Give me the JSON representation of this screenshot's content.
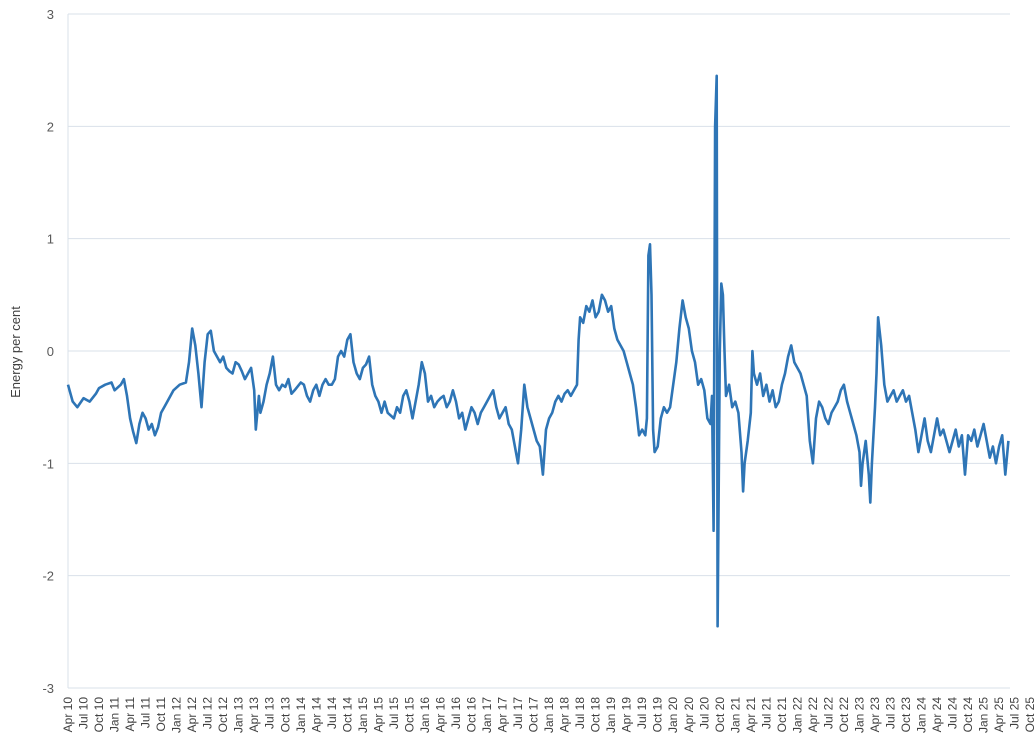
{
  "chart_data": {
    "type": "line",
    "title": "",
    "xlabel": "",
    "ylabel": "Energy per cent",
    "ylim": [
      -3,
      3
    ],
    "yticks": [
      3,
      2,
      1,
      0,
      -1,
      -2,
      -3
    ],
    "grid": true,
    "legend": "none",
    "line_color": "#2e75b6",
    "x": [
      "Apr 10",
      "Jul 10",
      "Oct 10",
      "Jan 11",
      "Apr 11",
      "Jul 11",
      "Oct 11",
      "Jan 12",
      "Apr 12",
      "Jul 12",
      "Oct 12",
      "Jan 13",
      "Apr 13",
      "Jul 13",
      "Oct 13",
      "Jan 14",
      "Apr 14",
      "Jul 14",
      "Oct 14",
      "Jan 15",
      "Apr 15",
      "Jul 15",
      "Oct 15",
      "Jan 16",
      "Apr 16",
      "Jul 16",
      "Oct 16",
      "Jan 17",
      "Apr 17",
      "Jul 17",
      "Oct 17",
      "Jan 18",
      "Apr 18",
      "Jul 18",
      "Oct 18",
      "Jan 19",
      "Apr 19",
      "Jul 19",
      "Oct 19",
      "Jan 20",
      "Apr 20",
      "Jul 20",
      "Oct 20",
      "Jan 21",
      "Apr 21",
      "Jul 21",
      "Oct 21",
      "Jan 22",
      "Apr 22",
      "Jul 22",
      "Oct 22",
      "Jan 23",
      "Apr 23",
      "Jul 23",
      "Oct 23",
      "Jan 24",
      "Apr 24",
      "Jul 24",
      "Oct 24",
      "Jan 25",
      "Apr 25",
      "Jul 25",
      "Oct 25"
    ],
    "series": [
      {
        "values": [
          [
            0,
            -0.3
          ],
          [
            0.15,
            -0.45
          ],
          [
            0.3,
            -0.5
          ],
          [
            0.5,
            -0.42
          ],
          [
            0.7,
            -0.45
          ],
          [
            0.9,
            -0.38
          ],
          [
            1.0,
            -0.33
          ],
          [
            1.2,
            -0.3
          ],
          [
            1.4,
            -0.28
          ],
          [
            1.5,
            -0.35
          ],
          [
            1.7,
            -0.3
          ],
          [
            1.8,
            -0.25
          ],
          [
            1.9,
            -0.4
          ],
          [
            2.0,
            -0.6
          ],
          [
            2.1,
            -0.72
          ],
          [
            2.2,
            -0.82
          ],
          [
            2.3,
            -0.65
          ],
          [
            2.4,
            -0.55
          ],
          [
            2.5,
            -0.6
          ],
          [
            2.6,
            -0.7
          ],
          [
            2.7,
            -0.65
          ],
          [
            2.8,
            -0.75
          ],
          [
            2.9,
            -0.68
          ],
          [
            3.0,
            -0.55
          ],
          [
            3.1,
            -0.5
          ],
          [
            3.2,
            -0.45
          ],
          [
            3.4,
            -0.35
          ],
          [
            3.6,
            -0.3
          ],
          [
            3.8,
            -0.28
          ],
          [
            3.9,
            -0.1
          ],
          [
            4.0,
            0.2
          ],
          [
            4.1,
            0.05
          ],
          [
            4.2,
            -0.2
          ],
          [
            4.3,
            -0.5
          ],
          [
            4.4,
            -0.1
          ],
          [
            4.5,
            0.15
          ],
          [
            4.6,
            0.18
          ],
          [
            4.7,
            0.0
          ],
          [
            4.8,
            -0.05
          ],
          [
            4.9,
            -0.1
          ],
          [
            5.0,
            -0.05
          ],
          [
            5.1,
            -0.15
          ],
          [
            5.2,
            -0.18
          ],
          [
            5.3,
            -0.2
          ],
          [
            5.4,
            -0.1
          ],
          [
            5.5,
            -0.12
          ],
          [
            5.6,
            -0.18
          ],
          [
            5.7,
            -0.25
          ],
          [
            5.8,
            -0.2
          ],
          [
            5.9,
            -0.15
          ],
          [
            6.0,
            -0.35
          ],
          [
            6.05,
            -0.7
          ],
          [
            6.15,
            -0.4
          ],
          [
            6.2,
            -0.55
          ],
          [
            6.3,
            -0.45
          ],
          [
            6.4,
            -0.3
          ],
          [
            6.5,
            -0.2
          ],
          [
            6.6,
            -0.05
          ],
          [
            6.7,
            -0.3
          ],
          [
            6.8,
            -0.35
          ],
          [
            6.9,
            -0.3
          ],
          [
            7.0,
            -0.32
          ],
          [
            7.1,
            -0.25
          ],
          [
            7.2,
            -0.38
          ],
          [
            7.3,
            -0.35
          ],
          [
            7.5,
            -0.28
          ],
          [
            7.6,
            -0.3
          ],
          [
            7.7,
            -0.4
          ],
          [
            7.8,
            -0.45
          ],
          [
            7.9,
            -0.35
          ],
          [
            8.0,
            -0.3
          ],
          [
            8.1,
            -0.4
          ],
          [
            8.2,
            -0.3
          ],
          [
            8.3,
            -0.25
          ],
          [
            8.4,
            -0.3
          ],
          [
            8.5,
            -0.3
          ],
          [
            8.6,
            -0.25
          ],
          [
            8.7,
            -0.05
          ],
          [
            8.8,
            0.0
          ],
          [
            8.9,
            -0.05
          ],
          [
            9.0,
            0.1
          ],
          [
            9.1,
            0.15
          ],
          [
            9.2,
            -0.1
          ],
          [
            9.3,
            -0.2
          ],
          [
            9.4,
            -0.25
          ],
          [
            9.5,
            -0.15
          ],
          [
            9.6,
            -0.12
          ],
          [
            9.7,
            -0.05
          ],
          [
            9.8,
            -0.3
          ],
          [
            9.9,
            -0.4
          ],
          [
            10.0,
            -0.45
          ],
          [
            10.1,
            -0.55
          ],
          [
            10.2,
            -0.45
          ],
          [
            10.3,
            -0.55
          ],
          [
            10.5,
            -0.6
          ],
          [
            10.6,
            -0.5
          ],
          [
            10.7,
            -0.55
          ],
          [
            10.8,
            -0.4
          ],
          [
            10.9,
            -0.35
          ],
          [
            11.0,
            -0.45
          ],
          [
            11.1,
            -0.6
          ],
          [
            11.2,
            -0.45
          ],
          [
            11.3,
            -0.3
          ],
          [
            11.4,
            -0.1
          ],
          [
            11.5,
            -0.2
          ],
          [
            11.6,
            -0.45
          ],
          [
            11.7,
            -0.4
          ],
          [
            11.8,
            -0.5
          ],
          [
            11.9,
            -0.45
          ],
          [
            12.0,
            -0.42
          ],
          [
            12.1,
            -0.4
          ],
          [
            12.2,
            -0.5
          ],
          [
            12.3,
            -0.45
          ],
          [
            12.4,
            -0.35
          ],
          [
            12.5,
            -0.45
          ],
          [
            12.6,
            -0.6
          ],
          [
            12.7,
            -0.55
          ],
          [
            12.8,
            -0.7
          ],
          [
            12.9,
            -0.6
          ],
          [
            13.0,
            -0.5
          ],
          [
            13.1,
            -0.55
          ],
          [
            13.2,
            -0.65
          ],
          [
            13.3,
            -0.55
          ],
          [
            13.4,
            -0.5
          ],
          [
            13.5,
            -0.45
          ],
          [
            13.6,
            -0.4
          ],
          [
            13.7,
            -0.35
          ],
          [
            13.8,
            -0.5
          ],
          [
            13.9,
            -0.6
          ],
          [
            14.0,
            -0.55
          ],
          [
            14.1,
            -0.5
          ],
          [
            14.2,
            -0.65
          ],
          [
            14.3,
            -0.7
          ],
          [
            14.4,
            -0.85
          ],
          [
            14.5,
            -1.0
          ],
          [
            14.6,
            -0.7
          ],
          [
            14.7,
            -0.3
          ],
          [
            14.8,
            -0.5
          ],
          [
            14.9,
            -0.6
          ],
          [
            15.0,
            -0.7
          ],
          [
            15.1,
            -0.8
          ],
          [
            15.2,
            -0.85
          ],
          [
            15.3,
            -1.1
          ],
          [
            15.4,
            -0.7
          ],
          [
            15.5,
            -0.6
          ],
          [
            15.6,
            -0.55
          ],
          [
            15.7,
            -0.45
          ],
          [
            15.8,
            -0.4
          ],
          [
            15.9,
            -0.45
          ],
          [
            16.0,
            -0.38
          ],
          [
            16.1,
            -0.35
          ],
          [
            16.2,
            -0.4
          ],
          [
            16.3,
            -0.35
          ],
          [
            16.4,
            -0.3
          ],
          [
            16.45,
            0.1
          ],
          [
            16.5,
            0.3
          ],
          [
            16.6,
            0.25
          ],
          [
            16.7,
            0.4
          ],
          [
            16.8,
            0.35
          ],
          [
            16.9,
            0.45
          ],
          [
            17.0,
            0.3
          ],
          [
            17.1,
            0.35
          ],
          [
            17.2,
            0.5
          ],
          [
            17.3,
            0.45
          ],
          [
            17.4,
            0.35
          ],
          [
            17.5,
            0.4
          ],
          [
            17.6,
            0.2
          ],
          [
            17.7,
            0.1
          ],
          [
            17.8,
            0.05
          ],
          [
            17.9,
            0.0
          ],
          [
            18.0,
            -0.1
          ],
          [
            18.1,
            -0.2
          ],
          [
            18.2,
            -0.3
          ],
          [
            18.3,
            -0.5
          ],
          [
            18.4,
            -0.75
          ],
          [
            18.5,
            -0.7
          ],
          [
            18.6,
            -0.75
          ],
          [
            18.65,
            -0.6
          ],
          [
            18.7,
            0.85
          ],
          [
            18.75,
            0.95
          ],
          [
            18.8,
            0.5
          ],
          [
            18.85,
            -0.7
          ],
          [
            18.9,
            -0.9
          ],
          [
            19.0,
            -0.85
          ],
          [
            19.1,
            -0.6
          ],
          [
            19.2,
            -0.5
          ],
          [
            19.3,
            -0.55
          ],
          [
            19.4,
            -0.5
          ],
          [
            19.5,
            -0.3
          ],
          [
            19.6,
            -0.1
          ],
          [
            19.7,
            0.2
          ],
          [
            19.8,
            0.45
          ],
          [
            19.9,
            0.3
          ],
          [
            20.0,
            0.2
          ],
          [
            20.1,
            0.0
          ],
          [
            20.2,
            -0.1
          ],
          [
            20.3,
            -0.3
          ],
          [
            20.4,
            -0.25
          ],
          [
            20.5,
            -0.35
          ],
          [
            20.6,
            -0.6
          ],
          [
            20.7,
            -0.65
          ],
          [
            20.75,
            -0.4
          ],
          [
            20.8,
            -1.6
          ],
          [
            20.85,
            2.0
          ],
          [
            20.9,
            2.45
          ],
          [
            20.93,
            -2.45
          ],
          [
            20.97,
            -1.0
          ],
          [
            21.0,
            0.0
          ],
          [
            21.05,
            0.6
          ],
          [
            21.1,
            0.5
          ],
          [
            21.15,
            0.0
          ],
          [
            21.2,
            -0.4
          ],
          [
            21.3,
            -0.3
          ],
          [
            21.4,
            -0.5
          ],
          [
            21.5,
            -0.45
          ],
          [
            21.6,
            -0.55
          ],
          [
            21.7,
            -0.9
          ],
          [
            21.75,
            -1.25
          ],
          [
            21.8,
            -1.0
          ],
          [
            21.9,
            -0.8
          ],
          [
            22.0,
            -0.55
          ],
          [
            22.05,
            0.0
          ],
          [
            22.1,
            -0.2
          ],
          [
            22.2,
            -0.3
          ],
          [
            22.3,
            -0.2
          ],
          [
            22.4,
            -0.4
          ],
          [
            22.5,
            -0.3
          ],
          [
            22.6,
            -0.45
          ],
          [
            22.7,
            -0.35
          ],
          [
            22.8,
            -0.5
          ],
          [
            22.9,
            -0.45
          ],
          [
            23.0,
            -0.3
          ],
          [
            23.1,
            -0.2
          ],
          [
            23.2,
            -0.05
          ],
          [
            23.3,
            0.05
          ],
          [
            23.4,
            -0.1
          ],
          [
            23.5,
            -0.15
          ],
          [
            23.6,
            -0.2
          ],
          [
            23.7,
            -0.3
          ],
          [
            23.8,
            -0.4
          ],
          [
            23.9,
            -0.8
          ],
          [
            24.0,
            -1.0
          ],
          [
            24.1,
            -0.6
          ],
          [
            24.2,
            -0.45
          ],
          [
            24.3,
            -0.5
          ],
          [
            24.4,
            -0.6
          ],
          [
            24.5,
            -0.65
          ],
          [
            24.6,
            -0.55
          ],
          [
            24.7,
            -0.5
          ],
          [
            24.8,
            -0.45
          ],
          [
            24.9,
            -0.35
          ],
          [
            25.0,
            -0.3
          ],
          [
            25.1,
            -0.45
          ],
          [
            25.2,
            -0.55
          ],
          [
            25.3,
            -0.65
          ],
          [
            25.4,
            -0.75
          ],
          [
            25.5,
            -0.9
          ],
          [
            25.55,
            -1.2
          ],
          [
            25.6,
            -1.0
          ],
          [
            25.7,
            -0.8
          ],
          [
            25.8,
            -1.1
          ],
          [
            25.85,
            -1.35
          ],
          [
            25.9,
            -1.0
          ],
          [
            26.0,
            -0.5
          ],
          [
            26.05,
            -0.2
          ],
          [
            26.1,
            0.3
          ],
          [
            26.2,
            0.05
          ],
          [
            26.3,
            -0.3
          ],
          [
            26.4,
            -0.45
          ],
          [
            26.5,
            -0.4
          ],
          [
            26.6,
            -0.35
          ],
          [
            26.7,
            -0.45
          ],
          [
            26.8,
            -0.4
          ],
          [
            26.9,
            -0.35
          ],
          [
            27.0,
            -0.45
          ],
          [
            27.1,
            -0.4
          ],
          [
            27.2,
            -0.55
          ],
          [
            27.3,
            -0.7
          ],
          [
            27.4,
            -0.9
          ],
          [
            27.5,
            -0.75
          ],
          [
            27.6,
            -0.6
          ],
          [
            27.7,
            -0.8
          ],
          [
            27.8,
            -0.9
          ],
          [
            27.9,
            -0.75
          ],
          [
            28.0,
            -0.6
          ],
          [
            28.1,
            -0.75
          ],
          [
            28.2,
            -0.7
          ],
          [
            28.3,
            -0.8
          ],
          [
            28.4,
            -0.9
          ],
          [
            28.5,
            -0.8
          ],
          [
            28.6,
            -0.7
          ],
          [
            28.7,
            -0.85
          ],
          [
            28.8,
            -0.75
          ],
          [
            28.9,
            -1.1
          ],
          [
            29.0,
            -0.75
          ],
          [
            29.1,
            -0.8
          ],
          [
            29.2,
            -0.7
          ],
          [
            29.3,
            -0.85
          ],
          [
            29.4,
            -0.75
          ],
          [
            29.5,
            -0.65
          ],
          [
            29.6,
            -0.8
          ],
          [
            29.7,
            -0.95
          ],
          [
            29.8,
            -0.85
          ],
          [
            29.9,
            -1.0
          ],
          [
            30.0,
            -0.85
          ],
          [
            30.1,
            -0.75
          ],
          [
            30.2,
            -1.1
          ],
          [
            30.3,
            -0.8
          ]
        ]
      }
    ]
  }
}
